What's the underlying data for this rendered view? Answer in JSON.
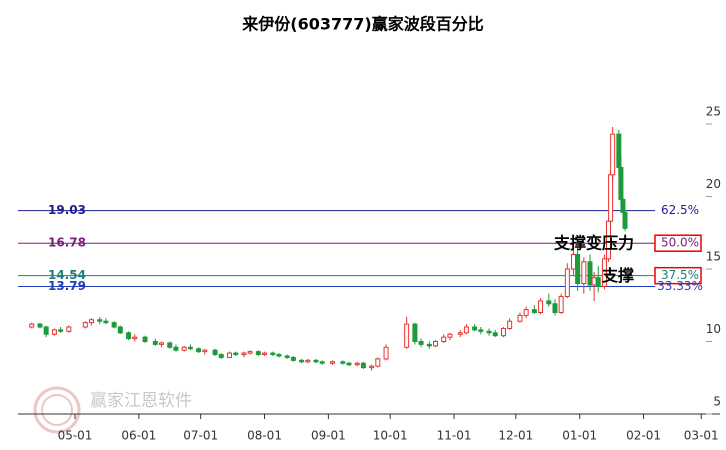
{
  "chart_data": {
    "type": "candlestick",
    "title": "来伊份(603777)赢家波段百分比",
    "watermark": "赢家江恩软件",
    "up_color": "#e8322f",
    "down_color": "#1e9a3c",
    "dates": [
      "04-10",
      "04-14",
      "04-17",
      "04-21",
      "04-24",
      "04-28",
      "05-06",
      "05-09",
      "05-13",
      "05-16",
      "05-20",
      "05-23",
      "05-27",
      "05-30",
      "06-04",
      "06-09",
      "06-12",
      "06-16",
      "06-19",
      "06-23",
      "06-26",
      "06-30",
      "07-03",
      "07-08",
      "07-11",
      "07-15",
      "07-18",
      "07-22",
      "07-25",
      "07-29",
      "08-01",
      "08-05",
      "08-08",
      "08-12",
      "08-15",
      "08-19",
      "08-22",
      "08-26",
      "08-29",
      "09-03",
      "09-08",
      "09-11",
      "09-15",
      "09-18",
      "09-22",
      "09-25",
      "09-29",
      "10-09",
      "10-13",
      "10-16",
      "10-20",
      "10-23",
      "10-27",
      "10-30",
      "11-04",
      "11-07",
      "11-11",
      "11-14",
      "11-18",
      "11-21",
      "11-25",
      "11-28",
      "12-03",
      "12-06",
      "12-10",
      "12-13",
      "12-17",
      "12-20",
      "12-23",
      "12-26",
      "12-29",
      "12-31",
      "01-03",
      "01-06",
      "01-08",
      "01-10",
      "01-13",
      "01-15",
      "01-16",
      "01-17",
      "01-20",
      "01-21",
      "01-22",
      "01-23"
    ],
    "open": [
      11.0,
      11.2,
      11.0,
      10.5,
      10.8,
      10.7,
      11.0,
      11.3,
      11.5,
      11.4,
      11.3,
      11.0,
      10.6,
      10.2,
      10.3,
      10.0,
      9.8,
      9.9,
      9.6,
      9.4,
      9.6,
      9.5,
      9.3,
      9.4,
      9.1,
      8.9,
      9.2,
      9.1,
      9.2,
      9.3,
      9.1,
      9.2,
      9.1,
      9.0,
      8.9,
      8.7,
      8.6,
      8.7,
      8.6,
      8.5,
      8.6,
      8.5,
      8.4,
      8.5,
      8.2,
      8.3,
      8.8,
      9.6,
      11.2,
      10.0,
      9.8,
      9.7,
      10.0,
      10.3,
      10.5,
      10.6,
      11.0,
      10.8,
      10.7,
      10.6,
      10.4,
      10.9,
      11.4,
      11.8,
      12.2,
      12.0,
      12.8,
      12.6,
      12.0,
      13.1,
      15.0,
      16.0,
      14.0,
      15.5,
      13.9,
      14.4,
      13.8,
      15.7,
      18.3,
      21.5,
      24.3,
      22.0,
      19.8,
      18.9
    ],
    "high": [
      11.3,
      11.3,
      11.1,
      10.9,
      11.0,
      11.1,
      11.4,
      11.6,
      11.7,
      11.6,
      11.4,
      11.1,
      10.7,
      10.5,
      10.4,
      10.2,
      10.0,
      10.0,
      9.8,
      9.7,
      9.8,
      9.6,
      9.5,
      9.5,
      9.2,
      9.3,
      9.3,
      9.3,
      9.4,
      9.4,
      9.3,
      9.3,
      9.2,
      9.1,
      9.0,
      8.8,
      8.8,
      8.8,
      8.7,
      8.7,
      8.7,
      8.6,
      8.6,
      8.6,
      8.4,
      8.9,
      9.8,
      11.7,
      11.3,
      10.2,
      10.0,
      10.1,
      10.5,
      10.6,
      10.8,
      11.2,
      11.2,
      11.0,
      10.9,
      10.8,
      11.0,
      11.6,
      12.0,
      12.4,
      12.5,
      13.0,
      13.3,
      12.9,
      13.3,
      15.4,
      17.3,
      16.5,
      15.8,
      16.0,
      14.8,
      15.2,
      16.0,
      18.5,
      21.8,
      24.8,
      24.6,
      22.8,
      20.0,
      19.2
    ],
    "low": [
      10.9,
      10.9,
      10.3,
      10.4,
      10.6,
      10.6,
      10.9,
      11.1,
      11.2,
      11.2,
      10.9,
      10.5,
      10.1,
      10.0,
      9.9,
      9.7,
      9.6,
      9.5,
      9.3,
      9.3,
      9.4,
      9.2,
      9.1,
      9.0,
      8.8,
      8.9,
      9.0,
      8.9,
      9.1,
      9.0,
      9.0,
      9.0,
      8.9,
      8.8,
      8.6,
      8.5,
      8.5,
      8.5,
      8.4,
      8.4,
      8.4,
      8.3,
      8.3,
      8.1,
      8.0,
      8.2,
      8.7,
      9.5,
      9.8,
      9.6,
      9.5,
      9.6,
      9.9,
      10.1,
      10.3,
      10.5,
      10.7,
      10.5,
      10.4,
      10.3,
      10.3,
      10.8,
      11.3,
      11.6,
      11.9,
      11.9,
      12.4,
      11.8,
      11.9,
      13.0,
      14.5,
      13.5,
      13.3,
      13.5,
      12.8,
      13.4,
      13.6,
      15.5,
      18.0,
      21.0,
      21.5,
      19.5,
      18.5,
      17.6
    ],
    "close": [
      11.2,
      11.0,
      10.5,
      10.8,
      10.7,
      11.0,
      11.3,
      11.5,
      11.4,
      11.3,
      11.0,
      10.6,
      10.2,
      10.3,
      10.0,
      9.8,
      9.9,
      9.6,
      9.4,
      9.6,
      9.5,
      9.3,
      9.4,
      9.1,
      8.9,
      9.2,
      9.1,
      9.2,
      9.3,
      9.1,
      9.2,
      9.1,
      9.0,
      8.9,
      8.7,
      8.6,
      8.7,
      8.6,
      8.5,
      8.6,
      8.5,
      8.4,
      8.5,
      8.2,
      8.3,
      8.8,
      9.6,
      11.2,
      10.0,
      9.8,
      9.7,
      10.0,
      10.3,
      10.5,
      10.6,
      11.0,
      10.8,
      10.7,
      10.6,
      10.4,
      10.9,
      11.4,
      11.8,
      12.2,
      12.0,
      12.8,
      12.6,
      12.0,
      13.1,
      15.0,
      16.0,
      14.0,
      15.5,
      13.9,
      14.4,
      13.8,
      15.7,
      18.3,
      21.5,
      24.3,
      22.0,
      19.8,
      18.9,
      17.8
    ],
    "ylim": [
      5,
      29
    ],
    "yticks": [
      5,
      10,
      15,
      20,
      25
    ],
    "xticks": [
      "05-01",
      "06-01",
      "07-01",
      "08-01",
      "09-01",
      "10-01",
      "11-01",
      "12-01",
      "01-01",
      "02-01",
      "03-01"
    ],
    "levels": [
      {
        "value": 19.03,
        "label": "62.5%",
        "color": "#1f1f8f"
      },
      {
        "value": 16.78,
        "label": "50.0%",
        "color": "#7a1f7a",
        "note": "支撑变压力",
        "boxed": true
      },
      {
        "value": 14.54,
        "label": "37.5%",
        "color": "#1f7f7f",
        "note": "支撑",
        "boxed": true
      },
      {
        "value": 13.79,
        "label": "33.33%",
        "color": "#1f3fbf"
      }
    ]
  }
}
